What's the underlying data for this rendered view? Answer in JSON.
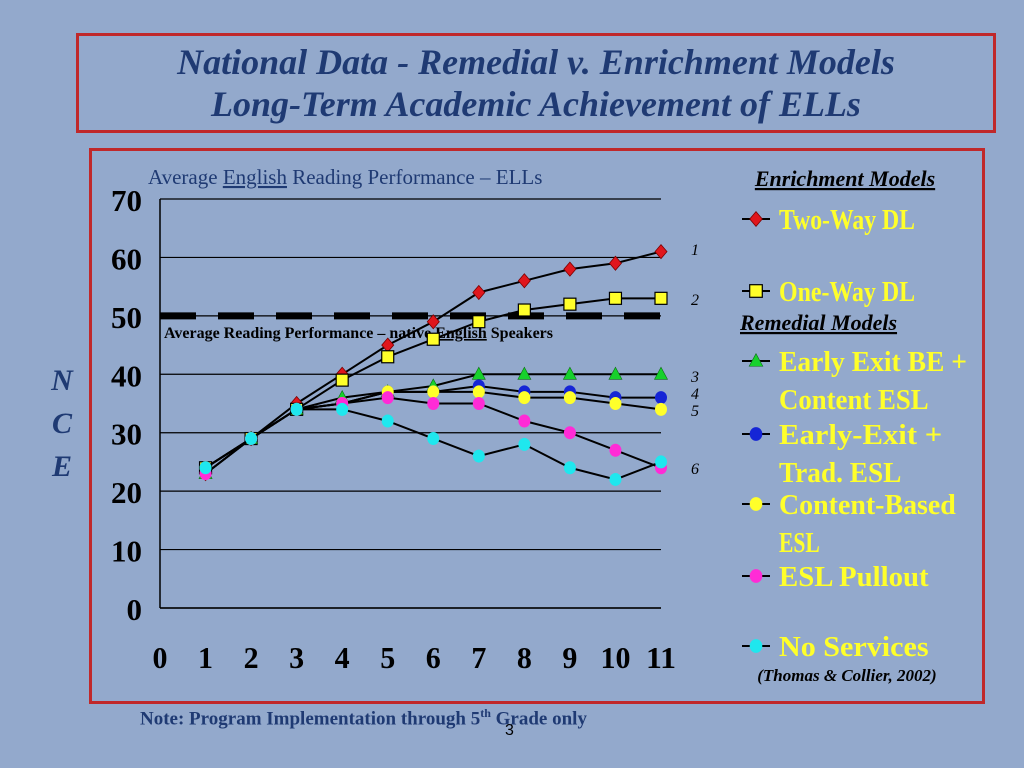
{
  "header": {
    "title_line1": "National Data - Remedial v. Enrichment Models",
    "title_line2": "Long-Term Academic Achievement of ELLs"
  },
  "chart_data": {
    "type": "line",
    "title_pre": "Average ",
    "title_underlined": "English",
    "title_post": " Reading Performance – ELLs",
    "ylabel_letters": [
      "N",
      "C",
      "E"
    ],
    "xlabel": "",
    "x": [
      1,
      2,
      3,
      4,
      5,
      6,
      7,
      8,
      9,
      10,
      11
    ],
    "xticks": [
      "0",
      "1",
      "2",
      "3",
      "4",
      "5",
      "6",
      "7",
      "8",
      "9",
      "10",
      "11"
    ],
    "yticks": [
      "0",
      "10",
      "20",
      "30",
      "40",
      "50",
      "60",
      "70"
    ],
    "xlim": [
      0,
      11
    ],
    "ylim": [
      0,
      70
    ],
    "grid": "horizontal",
    "reference_line": {
      "value": 50,
      "label_pre": "Average Reading Performance – native ",
      "label_underlined": "English",
      "label_post": " Speakers"
    },
    "series": [
      {
        "name": "Two-Way DL",
        "group": "Enrichment Models",
        "rank": "1",
        "color": "#e0161c",
        "marker": "diamond",
        "values": [
          23,
          29,
          35,
          40,
          45,
          49,
          54,
          56,
          58,
          59,
          61
        ]
      },
      {
        "name": "One-Way DL",
        "group": "Enrichment Models",
        "rank": "2",
        "color": "#ffff2a",
        "marker": "square",
        "values": [
          24,
          29,
          34,
          39,
          43,
          46,
          49,
          51,
          52,
          53,
          53
        ]
      },
      {
        "name": "Early Exit BE + Content ESL",
        "group": "Remedial Models",
        "rank": "3",
        "color": "#17d12c",
        "marker": "triangle",
        "values": [
          23,
          29,
          34,
          36,
          37,
          38,
          40,
          40,
          40,
          40,
          40
        ]
      },
      {
        "name": "Early-Exit + Trad. ESL",
        "group": "Remedial Models",
        "rank": "4",
        "color": "#1525d6",
        "marker": "circle",
        "values": [
          24,
          29,
          34,
          35,
          37,
          37,
          38,
          37,
          37,
          36,
          36
        ]
      },
      {
        "name": "Content-Based ESL",
        "group": "Remedial Models",
        "rank": "5",
        "color": "#ffff2a",
        "marker": "circle",
        "values": [
          24,
          29,
          34,
          35,
          37,
          37,
          37,
          36,
          36,
          35,
          34
        ]
      },
      {
        "name": "ESL Pullout",
        "group": "Remedial Models",
        "rank": "",
        "color": "#ff2bd6",
        "marker": "circle",
        "values": [
          23,
          29,
          34,
          35,
          36,
          35,
          35,
          32,
          30,
          27,
          24
        ]
      },
      {
        "name": "No Services",
        "group": "Remedial Models",
        "rank": "6",
        "color": "#1fe7ee",
        "marker": "circle",
        "values": [
          24,
          29,
          34,
          34,
          32,
          29,
          26,
          28,
          24,
          22,
          25
        ]
      }
    ],
    "legend": {
      "position": "right",
      "enrichment_title": "Enrichment Models",
      "remedial_title": "Remedial Models",
      "entries": [
        {
          "lines": [
            "Two-Way DL"
          ],
          "series": 0
        },
        {
          "lines": [
            "One-Way DL"
          ],
          "series": 1
        },
        {
          "lines": [
            "Early Exit BE +",
            "Content ESL"
          ],
          "series": 2
        },
        {
          "lines": [
            "Early-Exit +",
            "Trad. ESL"
          ],
          "series": 3
        },
        {
          "lines": [
            "Content-Based",
            "ESL"
          ],
          "series": 4
        },
        {
          "lines": [
            "ESL Pullout"
          ],
          "series": 5
        },
        {
          "lines": [
            "No Services"
          ],
          "series": 6
        }
      ],
      "citation": "(Thomas & Collier, 2002)"
    },
    "colors": {
      "text_dark_blue": "#1f3a73",
      "legend_text_yellow": "#ffff2a",
      "frame_red": "#c0282a",
      "background": "#93a9cc"
    }
  },
  "footer": {
    "note_pre": "Note: Program Implementation through 5",
    "note_sup": "th",
    "note_post": " Grade only",
    "page_number": "3"
  }
}
